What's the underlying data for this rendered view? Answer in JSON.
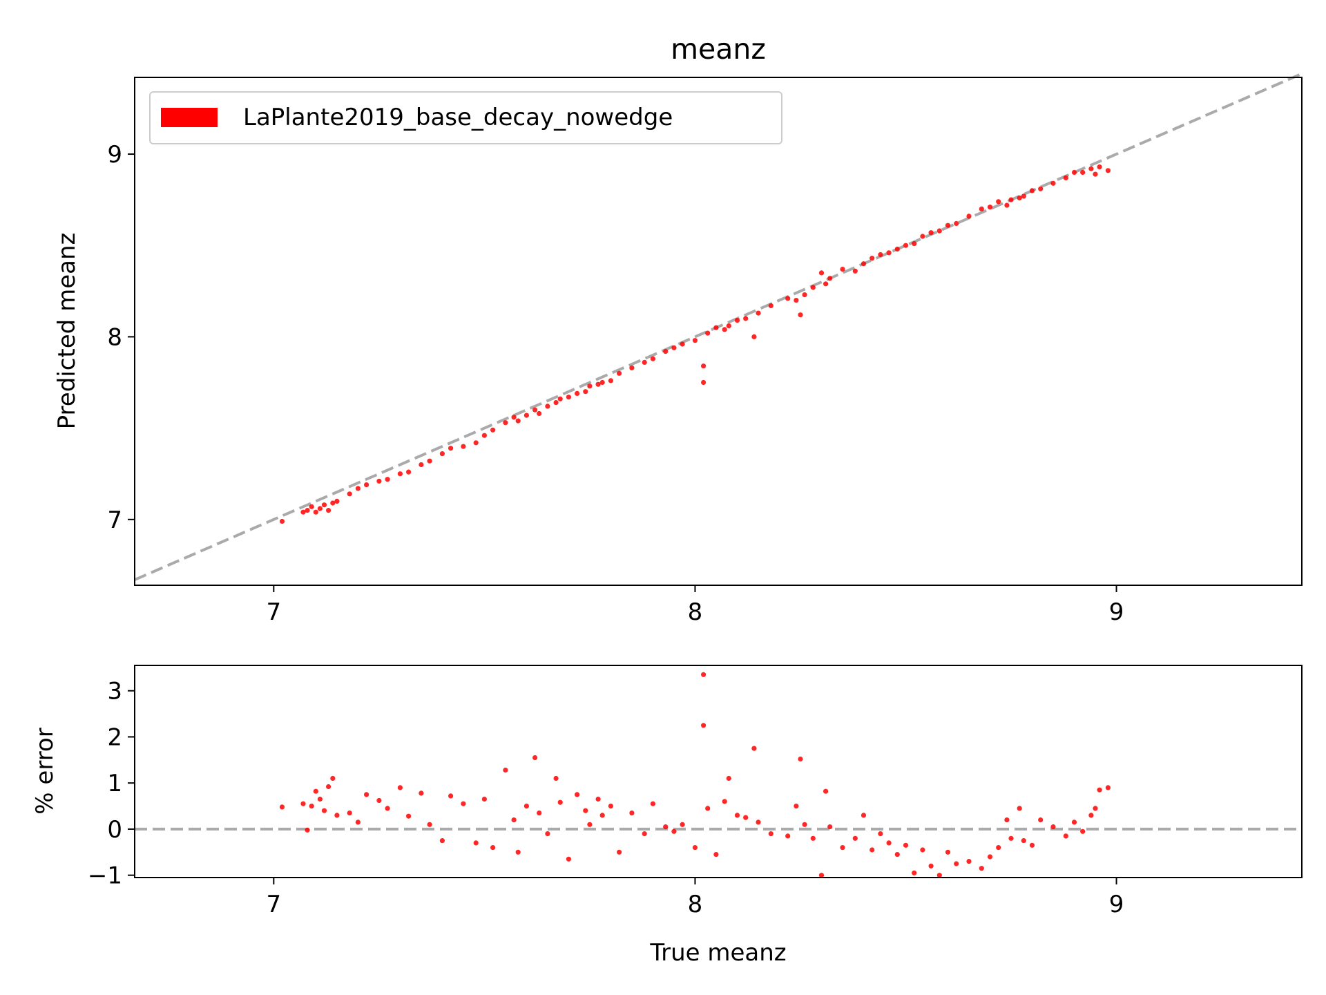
{
  "colors": {
    "points": "#ff0000",
    "reference_line": "#aaaaaa",
    "axes": "#000000",
    "background": "#ffffff",
    "legend_border": "#cccccc"
  },
  "chart_data": [
    {
      "type": "scatter",
      "title": "meanz",
      "xlabel": "",
      "ylabel": "Predicted meanz",
      "xlim": [
        6.67,
        9.44
      ],
      "ylim": [
        6.64,
        9.42
      ],
      "xticks": [
        7,
        8,
        9
      ],
      "xtick_labels": [
        "7",
        "8",
        "9"
      ],
      "yticks": [
        7,
        8,
        9
      ],
      "ytick_labels": [
        "7",
        "8",
        "9"
      ],
      "grid": false,
      "legend_position": "upper-left",
      "series": [
        {
          "name": "LaPlante2019_base_decay_nowedge",
          "color": "#ff0000",
          "points": [
            [
              7.02,
              6.99
            ],
            [
              7.07,
              7.04
            ],
            [
              7.08,
              7.05
            ],
            [
              7.09,
              7.07
            ],
            [
              7.1,
              7.04
            ],
            [
              7.11,
              7.06
            ],
            [
              7.12,
              7.08
            ],
            [
              7.13,
              7.05
            ],
            [
              7.14,
              7.09
            ],
            [
              7.15,
              7.1
            ],
            [
              7.18,
              7.14
            ],
            [
              7.2,
              7.17
            ],
            [
              7.22,
              7.19
            ],
            [
              7.25,
              7.21
            ],
            [
              7.27,
              7.22
            ],
            [
              7.3,
              7.25
            ],
            [
              7.32,
              7.26
            ],
            [
              7.35,
              7.3
            ],
            [
              7.37,
              7.32
            ],
            [
              7.4,
              7.36
            ],
            [
              7.42,
              7.39
            ],
            [
              7.45,
              7.4
            ],
            [
              7.48,
              7.42
            ],
            [
              7.5,
              7.46
            ],
            [
              7.52,
              7.49
            ],
            [
              7.55,
              7.53
            ],
            [
              7.57,
              7.56
            ],
            [
              7.58,
              7.54
            ],
            [
              7.6,
              7.57
            ],
            [
              7.62,
              7.6
            ],
            [
              7.63,
              7.58
            ],
            [
              7.65,
              7.62
            ],
            [
              7.67,
              7.64
            ],
            [
              7.68,
              7.66
            ],
            [
              7.7,
              7.67
            ],
            [
              7.72,
              7.69
            ],
            [
              7.74,
              7.7
            ],
            [
              7.75,
              7.73
            ],
            [
              7.77,
              7.74
            ],
            [
              7.78,
              7.75
            ],
            [
              7.8,
              7.76
            ],
            [
              7.82,
              7.8
            ],
            [
              7.85,
              7.83
            ],
            [
              7.88,
              7.86
            ],
            [
              7.9,
              7.88
            ],
            [
              7.93,
              7.92
            ],
            [
              7.95,
              7.94
            ],
            [
              7.97,
              7.96
            ],
            [
              8.0,
              7.98
            ],
            [
              8.02,
              7.75
            ],
            [
              8.02,
              7.84
            ],
            [
              8.03,
              8.02
            ],
            [
              8.05,
              8.05
            ],
            [
              8.07,
              8.04
            ],
            [
              8.08,
              8.06
            ],
            [
              8.1,
              8.09
            ],
            [
              8.12,
              8.1
            ],
            [
              8.14,
              8.0
            ],
            [
              8.15,
              8.13
            ],
            [
              8.18,
              8.17
            ],
            [
              8.22,
              8.21
            ],
            [
              8.24,
              8.2
            ],
            [
              8.25,
              8.12
            ],
            [
              8.26,
              8.23
            ],
            [
              8.28,
              8.27
            ],
            [
              8.3,
              8.35
            ],
            [
              8.31,
              8.29
            ],
            [
              8.32,
              8.32
            ],
            [
              8.35,
              8.37
            ],
            [
              8.38,
              8.36
            ],
            [
              8.4,
              8.4
            ],
            [
              8.42,
              8.43
            ],
            [
              8.44,
              8.45
            ],
            [
              8.46,
              8.46
            ],
            [
              8.48,
              8.48
            ],
            [
              8.5,
              8.5
            ],
            [
              8.52,
              8.51
            ],
            [
              8.54,
              8.55
            ],
            [
              8.56,
              8.57
            ],
            [
              8.58,
              8.58
            ],
            [
              8.6,
              8.61
            ],
            [
              8.62,
              8.62
            ],
            [
              8.65,
              8.66
            ],
            [
              8.68,
              8.7
            ],
            [
              8.7,
              8.71
            ],
            [
              8.72,
              8.74
            ],
            [
              8.74,
              8.72
            ],
            [
              8.75,
              8.75
            ],
            [
              8.77,
              8.76
            ],
            [
              8.78,
              8.77
            ],
            [
              8.8,
              8.8
            ],
            [
              8.82,
              8.81
            ],
            [
              8.85,
              8.84
            ],
            [
              8.88,
              8.87
            ],
            [
              8.9,
              8.9
            ],
            [
              8.92,
              8.9
            ],
            [
              8.94,
              8.92
            ],
            [
              8.95,
              8.89
            ],
            [
              8.96,
              8.93
            ],
            [
              8.98,
              8.91
            ]
          ]
        }
      ],
      "reference_line": {
        "from": [
          6.67,
          6.67
        ],
        "to": [
          9.44,
          9.44
        ],
        "style": "dashed"
      }
    },
    {
      "type": "scatter",
      "title": "",
      "xlabel": "True meanz",
      "ylabel": "% error",
      "xlim": [
        6.67,
        9.44
      ],
      "ylim": [
        -1.05,
        3.55
      ],
      "xticks": [
        7,
        8,
        9
      ],
      "xtick_labels": [
        "7",
        "8",
        "9"
      ],
      "yticks": [
        -1,
        0,
        1,
        2,
        3
      ],
      "ytick_labels": [
        "−1",
        "0",
        "1",
        "2",
        "3"
      ],
      "grid": false,
      "series": [
        {
          "color": "#ff0000",
          "points": [
            [
              7.02,
              0.48
            ],
            [
              7.07,
              0.55
            ],
            [
              7.08,
              -0.02
            ],
            [
              7.09,
              0.5
            ],
            [
              7.1,
              0.82
            ],
            [
              7.11,
              0.65
            ],
            [
              7.12,
              0.4
            ],
            [
              7.13,
              0.92
            ],
            [
              7.14,
              1.1
            ],
            [
              7.15,
              0.3
            ],
            [
              7.18,
              0.35
            ],
            [
              7.2,
              0.15
            ],
            [
              7.22,
              0.75
            ],
            [
              7.25,
              0.62
            ],
            [
              7.27,
              0.45
            ],
            [
              7.3,
              0.9
            ],
            [
              7.32,
              0.28
            ],
            [
              7.35,
              0.78
            ],
            [
              7.37,
              0.1
            ],
            [
              7.4,
              -0.25
            ],
            [
              7.42,
              0.72
            ],
            [
              7.45,
              0.55
            ],
            [
              7.48,
              -0.3
            ],
            [
              7.5,
              0.65
            ],
            [
              7.52,
              -0.4
            ],
            [
              7.55,
              1.28
            ],
            [
              7.57,
              0.2
            ],
            [
              7.58,
              -0.5
            ],
            [
              7.6,
              0.5
            ],
            [
              7.62,
              1.55
            ],
            [
              7.63,
              0.35
            ],
            [
              7.65,
              -0.1
            ],
            [
              7.67,
              1.1
            ],
            [
              7.68,
              0.58
            ],
            [
              7.7,
              -0.65
            ],
            [
              7.72,
              0.75
            ],
            [
              7.74,
              0.4
            ],
            [
              7.75,
              0.1
            ],
            [
              7.77,
              0.65
            ],
            [
              7.78,
              0.3
            ],
            [
              7.8,
              0.5
            ],
            [
              7.82,
              -0.5
            ],
            [
              7.85,
              0.35
            ],
            [
              7.88,
              -0.1
            ],
            [
              7.9,
              0.55
            ],
            [
              7.93,
              0.05
            ],
            [
              7.95,
              -0.05
            ],
            [
              7.97,
              0.1
            ],
            [
              8.0,
              -0.4
            ],
            [
              8.02,
              3.35
            ],
            [
              8.02,
              2.25
            ],
            [
              8.03,
              0.45
            ],
            [
              8.05,
              -0.55
            ],
            [
              8.07,
              0.6
            ],
            [
              8.08,
              1.1
            ],
            [
              8.1,
              0.3
            ],
            [
              8.12,
              0.25
            ],
            [
              8.14,
              1.75
            ],
            [
              8.15,
              0.15
            ],
            [
              8.18,
              -0.1
            ],
            [
              8.22,
              -0.15
            ],
            [
              8.24,
              0.5
            ],
            [
              8.25,
              1.52
            ],
            [
              8.26,
              0.1
            ],
            [
              8.28,
              -0.2
            ],
            [
              8.3,
              -1.0
            ],
            [
              8.31,
              0.82
            ],
            [
              8.32,
              0.05
            ],
            [
              8.35,
              -0.4
            ],
            [
              8.38,
              -0.2
            ],
            [
              8.4,
              0.3
            ],
            [
              8.42,
              -0.45
            ],
            [
              8.44,
              -0.1
            ],
            [
              8.46,
              -0.3
            ],
            [
              8.48,
              -0.55
            ],
            [
              8.5,
              -0.35
            ],
            [
              8.52,
              -0.95
            ],
            [
              8.54,
              -0.45
            ],
            [
              8.56,
              -0.8
            ],
            [
              8.58,
              -1.0
            ],
            [
              8.6,
              -0.5
            ],
            [
              8.62,
              -0.75
            ],
            [
              8.65,
              -0.7
            ],
            [
              8.68,
              -0.85
            ],
            [
              8.7,
              -0.6
            ],
            [
              8.72,
              -0.4
            ],
            [
              8.74,
              0.2
            ],
            [
              8.75,
              -0.2
            ],
            [
              8.77,
              0.45
            ],
            [
              8.78,
              -0.25
            ],
            [
              8.8,
              -0.35
            ],
            [
              8.82,
              0.2
            ],
            [
              8.85,
              0.05
            ],
            [
              8.88,
              -0.15
            ],
            [
              8.9,
              0.15
            ],
            [
              8.92,
              -0.05
            ],
            [
              8.94,
              0.3
            ],
            [
              8.95,
              0.45
            ],
            [
              8.96,
              0.85
            ],
            [
              8.98,
              0.9
            ]
          ]
        }
      ],
      "reference_line": {
        "y": 0,
        "style": "dashed"
      }
    }
  ]
}
